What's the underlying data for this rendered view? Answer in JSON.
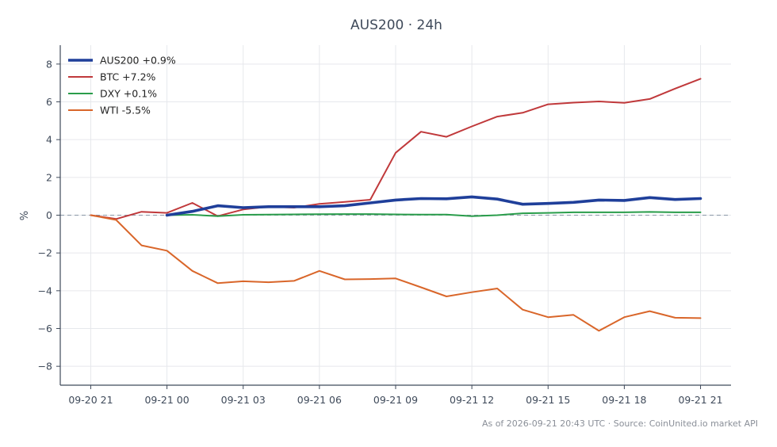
{
  "chart_data": {
    "type": "line",
    "title": "AUS200 · 24h",
    "ylabel": "%",
    "xlabel": "",
    "ylim": [
      -9,
      9
    ],
    "y_ticks": [
      -8,
      -6,
      -4,
      -2,
      0,
      2,
      4,
      6,
      8
    ],
    "y_tick_labels": [
      "−8",
      "−6",
      "−4",
      "−2",
      "0",
      "2",
      "4",
      "6",
      "8"
    ],
    "x_ticks": [
      "09-20 21",
      "09-21 00",
      "09-21 03",
      "09-21 06",
      "09-21 09",
      "09-21 12",
      "09-21 15",
      "09-21 18",
      "09-21 21"
    ],
    "x_range_hours": [
      -1.2,
      25.2
    ],
    "x_unit": "hours from 09-20 21:00",
    "grid": true,
    "zero_line": true,
    "legend_position": "top-left",
    "series": [
      {
        "name": "AUS200 +0.9%",
        "color": "#1f3f9a",
        "stroke_weight": "bold",
        "x": [
          3,
          4,
          5,
          6,
          7,
          8,
          9,
          10,
          11,
          12,
          13,
          14,
          15,
          16,
          17,
          18,
          19,
          20,
          21,
          22,
          23,
          24
        ],
        "values": [
          0.0,
          0.2,
          0.5,
          0.4,
          0.45,
          0.45,
          0.45,
          0.5,
          0.65,
          0.8,
          0.88,
          0.87,
          0.97,
          0.85,
          0.58,
          0.62,
          0.68,
          0.8,
          0.78,
          0.93,
          0.83,
          0.88
        ]
      },
      {
        "name": "BTC +7.2%",
        "color": "#c0393b",
        "stroke_weight": "normal",
        "x": [
          0,
          1,
          2,
          3,
          4,
          5,
          6,
          7,
          8,
          9,
          10,
          11,
          12,
          13,
          14,
          15,
          16,
          17,
          18,
          19,
          20,
          21,
          22,
          23,
          24
        ],
        "values": [
          0.0,
          -0.2,
          0.18,
          0.12,
          0.65,
          -0.05,
          0.3,
          0.45,
          0.4,
          0.6,
          0.7,
          0.82,
          3.3,
          4.42,
          4.15,
          4.7,
          5.22,
          5.42,
          5.87,
          5.96,
          6.02,
          5.95,
          6.15,
          6.7,
          7.22
        ]
      },
      {
        "name": "DXY +0.1%",
        "color": "#2a9d4b",
        "stroke_weight": "normal",
        "x": [
          3,
          4,
          5,
          6,
          7,
          8,
          9,
          10,
          11,
          12,
          13,
          14,
          15,
          16,
          17,
          18,
          19,
          20,
          21,
          22,
          23,
          24
        ],
        "values": [
          0.0,
          0.02,
          -0.05,
          0.02,
          0.03,
          0.04,
          0.05,
          0.06,
          0.06,
          0.04,
          0.03,
          0.03,
          -0.05,
          0.0,
          0.1,
          0.12,
          0.15,
          0.15,
          0.15,
          0.17,
          0.15,
          0.15
        ]
      },
      {
        "name": "WTI -5.5%",
        "color": "#d9662a",
        "stroke_weight": "normal",
        "x": [
          0,
          1,
          2,
          3,
          4,
          5,
          6,
          7,
          8,
          9,
          10,
          11,
          12,
          13,
          14,
          15,
          16,
          17,
          18,
          19,
          20,
          21,
          22,
          23,
          24
        ],
        "values": [
          0.0,
          -0.25,
          -1.6,
          -1.88,
          -2.95,
          -3.6,
          -3.5,
          -3.55,
          -3.48,
          -2.95,
          -3.4,
          -3.38,
          -3.35,
          -3.82,
          -4.3,
          -4.08,
          -3.88,
          -5.0,
          -5.4,
          -5.28,
          -6.12,
          -5.4,
          -5.08,
          -5.43,
          -5.45
        ]
      }
    ]
  },
  "footer": {
    "text": "As of 2026-09-21 20:43 UTC · Source: CoinUnited.io market API"
  }
}
